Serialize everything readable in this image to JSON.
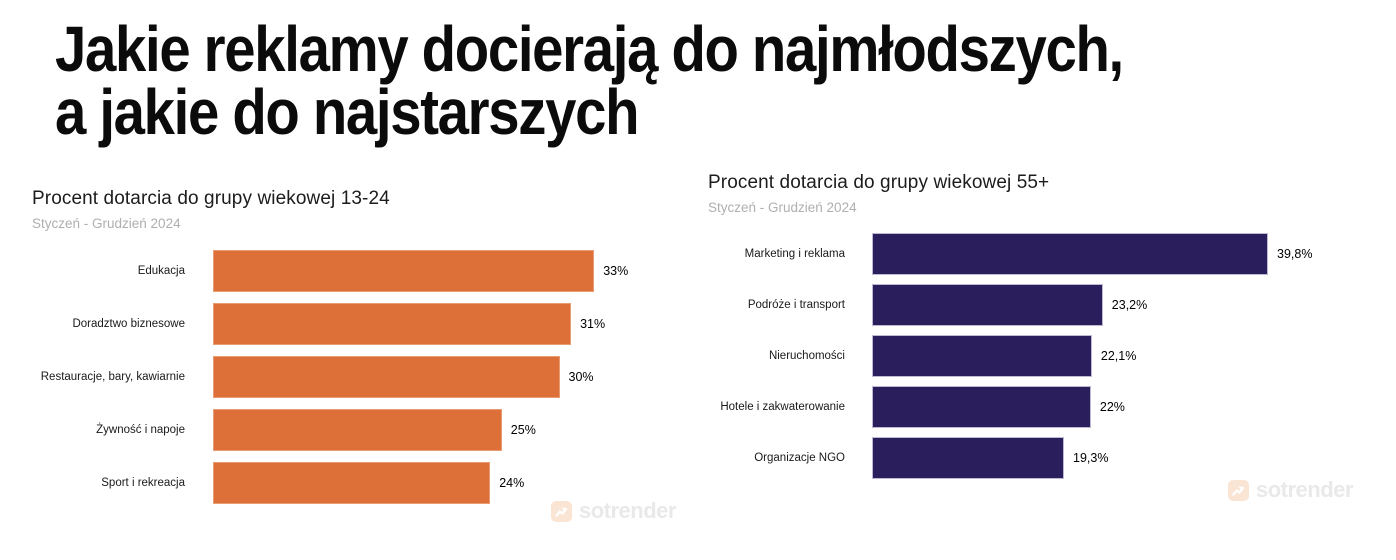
{
  "page": {
    "title_line1": "Jakie reklamy docierają do najmłodszych,",
    "title_line2": "a jakie do najstarszych"
  },
  "watermark": {
    "label": "sotrender",
    "icon": "trending-up-arrow"
  },
  "chart_data": [
    {
      "type": "bar",
      "orientation": "horizontal",
      "title": "Procent dotarcia do grupy wiekowej 13-24",
      "subtitle": "Styczeń - Grudzień 2024",
      "categories": [
        "Edukacja",
        "Doradztwo biznesowe",
        "Restauracje, bary, kawiarnie",
        "Żywność i napoje",
        "Sport i rekreacja"
      ],
      "values": [
        33,
        31,
        30,
        25,
        24
      ],
      "value_labels": [
        "33%",
        "31%",
        "30%",
        "25%",
        "24%"
      ],
      "bar_color": "#DD7038",
      "bar_border": "#E99B71",
      "xlim": [
        0,
        40
      ],
      "grid": false,
      "legend": false,
      "value_label_position": "right-of-bar"
    },
    {
      "type": "bar",
      "orientation": "horizontal",
      "title": "Procent dotarcia do grupy wiekowej 55+",
      "subtitle": "Styczeń - Grudzień 2024",
      "categories": [
        "Marketing i reklama",
        "Podróże i transport",
        "Nieruchomości",
        "Hotele i zakwaterowanie",
        "Organizacje NGO"
      ],
      "values": [
        39.8,
        23.2,
        22.1,
        22,
        19.3
      ],
      "value_labels": [
        "39,8%",
        "23,2%",
        "22,1%",
        "22%",
        "19,3%"
      ],
      "bar_color": "#2A1E5C",
      "bar_border": "#BEB8D2",
      "xlim": [
        0,
        44
      ],
      "grid": false,
      "legend": false,
      "value_label_position": "right-of-bar"
    }
  ]
}
